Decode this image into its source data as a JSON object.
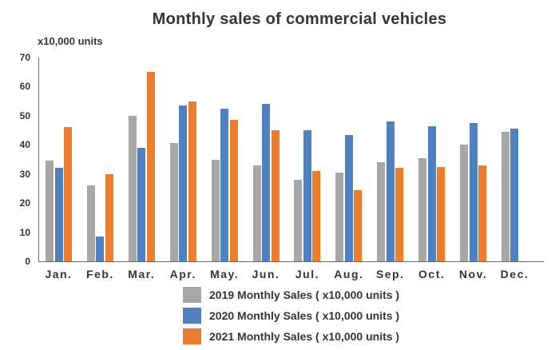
{
  "title": "Monthly sales of commercial vehicles",
  "y_axis_unit_label": "x10,000 units",
  "chart_data": {
    "type": "bar",
    "title": "Monthly sales of commercial vehicles",
    "categories": [
      "Jan.",
      "Feb.",
      "Mar.",
      "Apr.",
      "May.",
      "Jun.",
      "Jul.",
      "Aug.",
      "Sep.",
      "Oct.",
      "Nov.",
      "Dec."
    ],
    "series": [
      {
        "name": "2019 Monthly Sales ( x10,000 units )",
        "color": "#a7a7a7",
        "values": [
          34.5,
          26,
          50,
          40.5,
          35,
          33,
          28,
          30.5,
          34,
          35.5,
          40,
          44.5
        ]
      },
      {
        "name": "2020 Monthly Sales ( x10,000 units )",
        "color": "#4e81bd",
        "values": [
          32,
          8.5,
          39,
          53.5,
          52.5,
          54,
          45,
          43.5,
          48,
          46.5,
          47.5,
          45.5
        ]
      },
      {
        "name": "2021 Monthly Sales ( x10,000 units )",
        "color": "#ed7d2e",
        "values": [
          46,
          30,
          65,
          55,
          48.5,
          45,
          31,
          24.5,
          32,
          32.5,
          33,
          null
        ]
      }
    ],
    "xlabel": "",
    "ylabel": "x10,000 units",
    "ylim": [
      0,
      70
    ],
    "y_ticks": [
      0,
      10,
      20,
      30,
      40,
      50,
      60,
      70
    ],
    "grid": false,
    "legend_position": "bottom-left"
  }
}
